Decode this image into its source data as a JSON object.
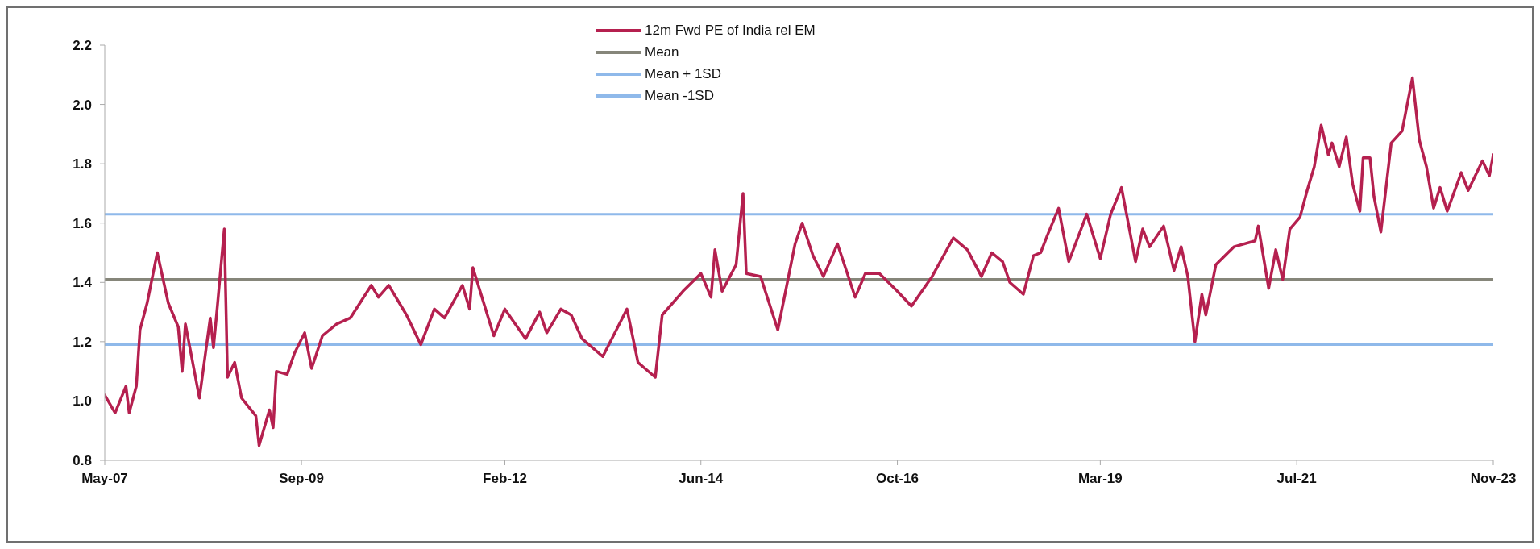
{
  "chart_data": {
    "type": "line",
    "x": [
      "2007-05-01",
      "2007-06-15",
      "2007-08-01",
      "2007-08-15",
      "2007-09-15",
      "2007-10-01",
      "2007-11-01",
      "2007-12-15",
      "2008-02-01",
      "2008-03-15",
      "2008-04-01",
      "2008-04-15",
      "2008-06-15",
      "2008-08-01",
      "2008-08-15",
      "2008-09-01",
      "2008-10-01",
      "2008-10-15",
      "2008-11-15",
      "2008-12-15",
      "2009-02-15",
      "2009-03-01",
      "2009-04-15",
      "2009-05-01",
      "2009-05-15",
      "2009-07-01",
      "2009-08-01",
      "2009-09-15",
      "2009-10-15",
      "2009-12-01",
      "2010-02-01",
      "2010-04-01",
      "2010-07-01",
      "2010-08-01",
      "2010-09-15",
      "2010-12-01",
      "2011-02-01",
      "2011-04-01",
      "2011-05-15",
      "2011-08-01",
      "2011-09-01",
      "2011-09-15",
      "2011-12-15",
      "2012-02-01",
      "2012-05-01",
      "2012-07-01",
      "2012-08-01",
      "2012-10-01",
      "2012-11-15",
      "2013-01-01",
      "2013-04-01",
      "2013-07-15",
      "2013-09-01",
      "2013-10-01",
      "2013-11-15",
      "2013-12-15",
      "2014-03-15",
      "2014-06-01",
      "2014-07-15",
      "2014-08-01",
      "2014-09-01",
      "2014-11-01",
      "2014-12-01",
      "2014-12-15",
      "2015-02-15",
      "2015-05-01",
      "2015-07-15",
      "2015-08-15",
      "2015-10-01",
      "2015-11-15",
      "2016-01-15",
      "2016-04-01",
      "2016-05-15",
      "2016-07-15",
      "2016-10-01",
      "2016-12-01",
      "2017-03-01",
      "2017-06-01",
      "2017-08-01",
      "2017-10-01",
      "2017-11-15",
      "2018-01-01",
      "2018-02-01",
      "2018-04-01",
      "2018-05-15",
      "2018-06-15",
      "2018-07-15",
      "2018-09-01",
      "2018-10-15",
      "2019-01-01",
      "2019-03-01",
      "2019-04-15",
      "2019-06-01",
      "2019-08-01",
      "2019-09-01",
      "2019-10-01",
      "2019-12-01",
      "2020-01-15",
      "2020-02-15",
      "2020-03-15",
      "2020-04-15",
      "2020-05-15",
      "2020-06-01",
      "2020-07-15",
      "2020-10-01",
      "2021-01-01",
      "2021-01-15",
      "2021-03-01",
      "2021-04-01",
      "2021-05-01",
      "2021-06-01",
      "2021-07-15",
      "2021-08-15",
      "2021-09-15",
      "2021-10-15",
      "2021-11-15",
      "2021-12-01",
      "2022-01-01",
      "2022-02-01",
      "2022-03-01",
      "2022-04-01",
      "2022-04-15",
      "2022-05-15",
      "2022-06-01",
      "2022-07-01",
      "2022-08-15",
      "2022-10-01",
      "2022-11-15",
      "2022-12-15",
      "2023-01-15",
      "2023-02-15",
      "2023-03-15",
      "2023-04-15",
      "2023-06-15",
      "2023-07-15",
      "2023-09-15",
      "2023-10-15",
      "2023-11-01"
    ],
    "series": [
      {
        "name": "12m Fwd PE of India rel EM",
        "color": "#b5204f",
        "values": [
          1.02,
          0.96,
          1.05,
          0.96,
          1.05,
          1.24,
          1.33,
          1.5,
          1.33,
          1.25,
          1.1,
          1.26,
          1.01,
          1.28,
          1.18,
          1.32,
          1.58,
          1.08,
          1.13,
          1.01,
          0.95,
          0.85,
          0.97,
          0.91,
          1.1,
          1.09,
          1.16,
          1.23,
          1.11,
          1.22,
          1.26,
          1.28,
          1.39,
          1.35,
          1.39,
          1.29,
          1.19,
          1.31,
          1.28,
          1.39,
          1.31,
          1.45,
          1.22,
          1.31,
          1.21,
          1.3,
          1.23,
          1.31,
          1.29,
          1.21,
          1.15,
          1.31,
          1.13,
          1.11,
          1.08,
          1.29,
          1.37,
          1.43,
          1.35,
          1.51,
          1.37,
          1.46,
          1.7,
          1.43,
          1.42,
          1.24,
          1.53,
          1.6,
          1.49,
          1.42,
          1.53,
          1.35,
          1.43,
          1.43,
          1.37,
          1.32,
          1.42,
          1.55,
          1.51,
          1.42,
          1.5,
          1.47,
          1.4,
          1.36,
          1.49,
          1.5,
          1.56,
          1.65,
          1.47,
          1.63,
          1.48,
          1.63,
          1.72,
          1.47,
          1.58,
          1.52,
          1.59,
          1.44,
          1.52,
          1.42,
          1.2,
          1.36,
          1.29,
          1.46,
          1.52,
          1.54,
          1.59,
          1.38,
          1.51,
          1.41,
          1.58,
          1.62,
          1.71,
          1.79,
          1.93,
          1.83,
          1.87,
          1.79,
          1.89,
          1.73,
          1.64,
          1.82,
          1.82,
          1.69,
          1.57,
          1.87,
          1.91,
          2.09,
          1.88,
          1.79,
          1.65,
          1.72,
          1.64,
          1.77,
          1.71,
          1.81,
          1.76,
          1.83
        ]
      }
    ],
    "ref_lines": [
      {
        "axis": "y",
        "value": 1.41,
        "label": "Mean",
        "color": "#86867a"
      },
      {
        "axis": "y",
        "value": 1.63,
        "label": "Mean + 1SD",
        "color": "#8fb9ea"
      },
      {
        "axis": "y",
        "value": 1.19,
        "label": "Mean -1SD",
        "color": "#8fb9ea"
      }
    ],
    "xlim": [
      "2007-05-01",
      "2023-11-01"
    ],
    "xticks": [
      {
        "value": "2007-05-01",
        "label": "May-07"
      },
      {
        "value": "2009-09-01",
        "label": "Sep-09"
      },
      {
        "value": "2012-02-01",
        "label": "Feb-12"
      },
      {
        "value": "2014-06-01",
        "label": "Jun-14"
      },
      {
        "value": "2016-10-01",
        "label": "Oct-16"
      },
      {
        "value": "2019-03-01",
        "label": "Mar-19"
      },
      {
        "value": "2021-07-01",
        "label": "Jul-21"
      },
      {
        "value": "2023-11-01",
        "label": "Nov-23"
      }
    ],
    "ylim": [
      0.8,
      2.2
    ],
    "yticks": [
      {
        "value": 0.8,
        "label": "0.8"
      },
      {
        "value": 1.0,
        "label": "1.0"
      },
      {
        "value": 1.2,
        "label": "1.2"
      },
      {
        "value": 1.4,
        "label": "1.4"
      },
      {
        "value": 1.6,
        "label": "1.6"
      },
      {
        "value": 1.8,
        "label": "1.8"
      },
      {
        "value": 2.0,
        "label": "2.0"
      },
      {
        "value": 2.2,
        "label": "2.2"
      }
    ],
    "grid": false,
    "legend": "top",
    "marker": "none",
    "line_style": "solid"
  }
}
